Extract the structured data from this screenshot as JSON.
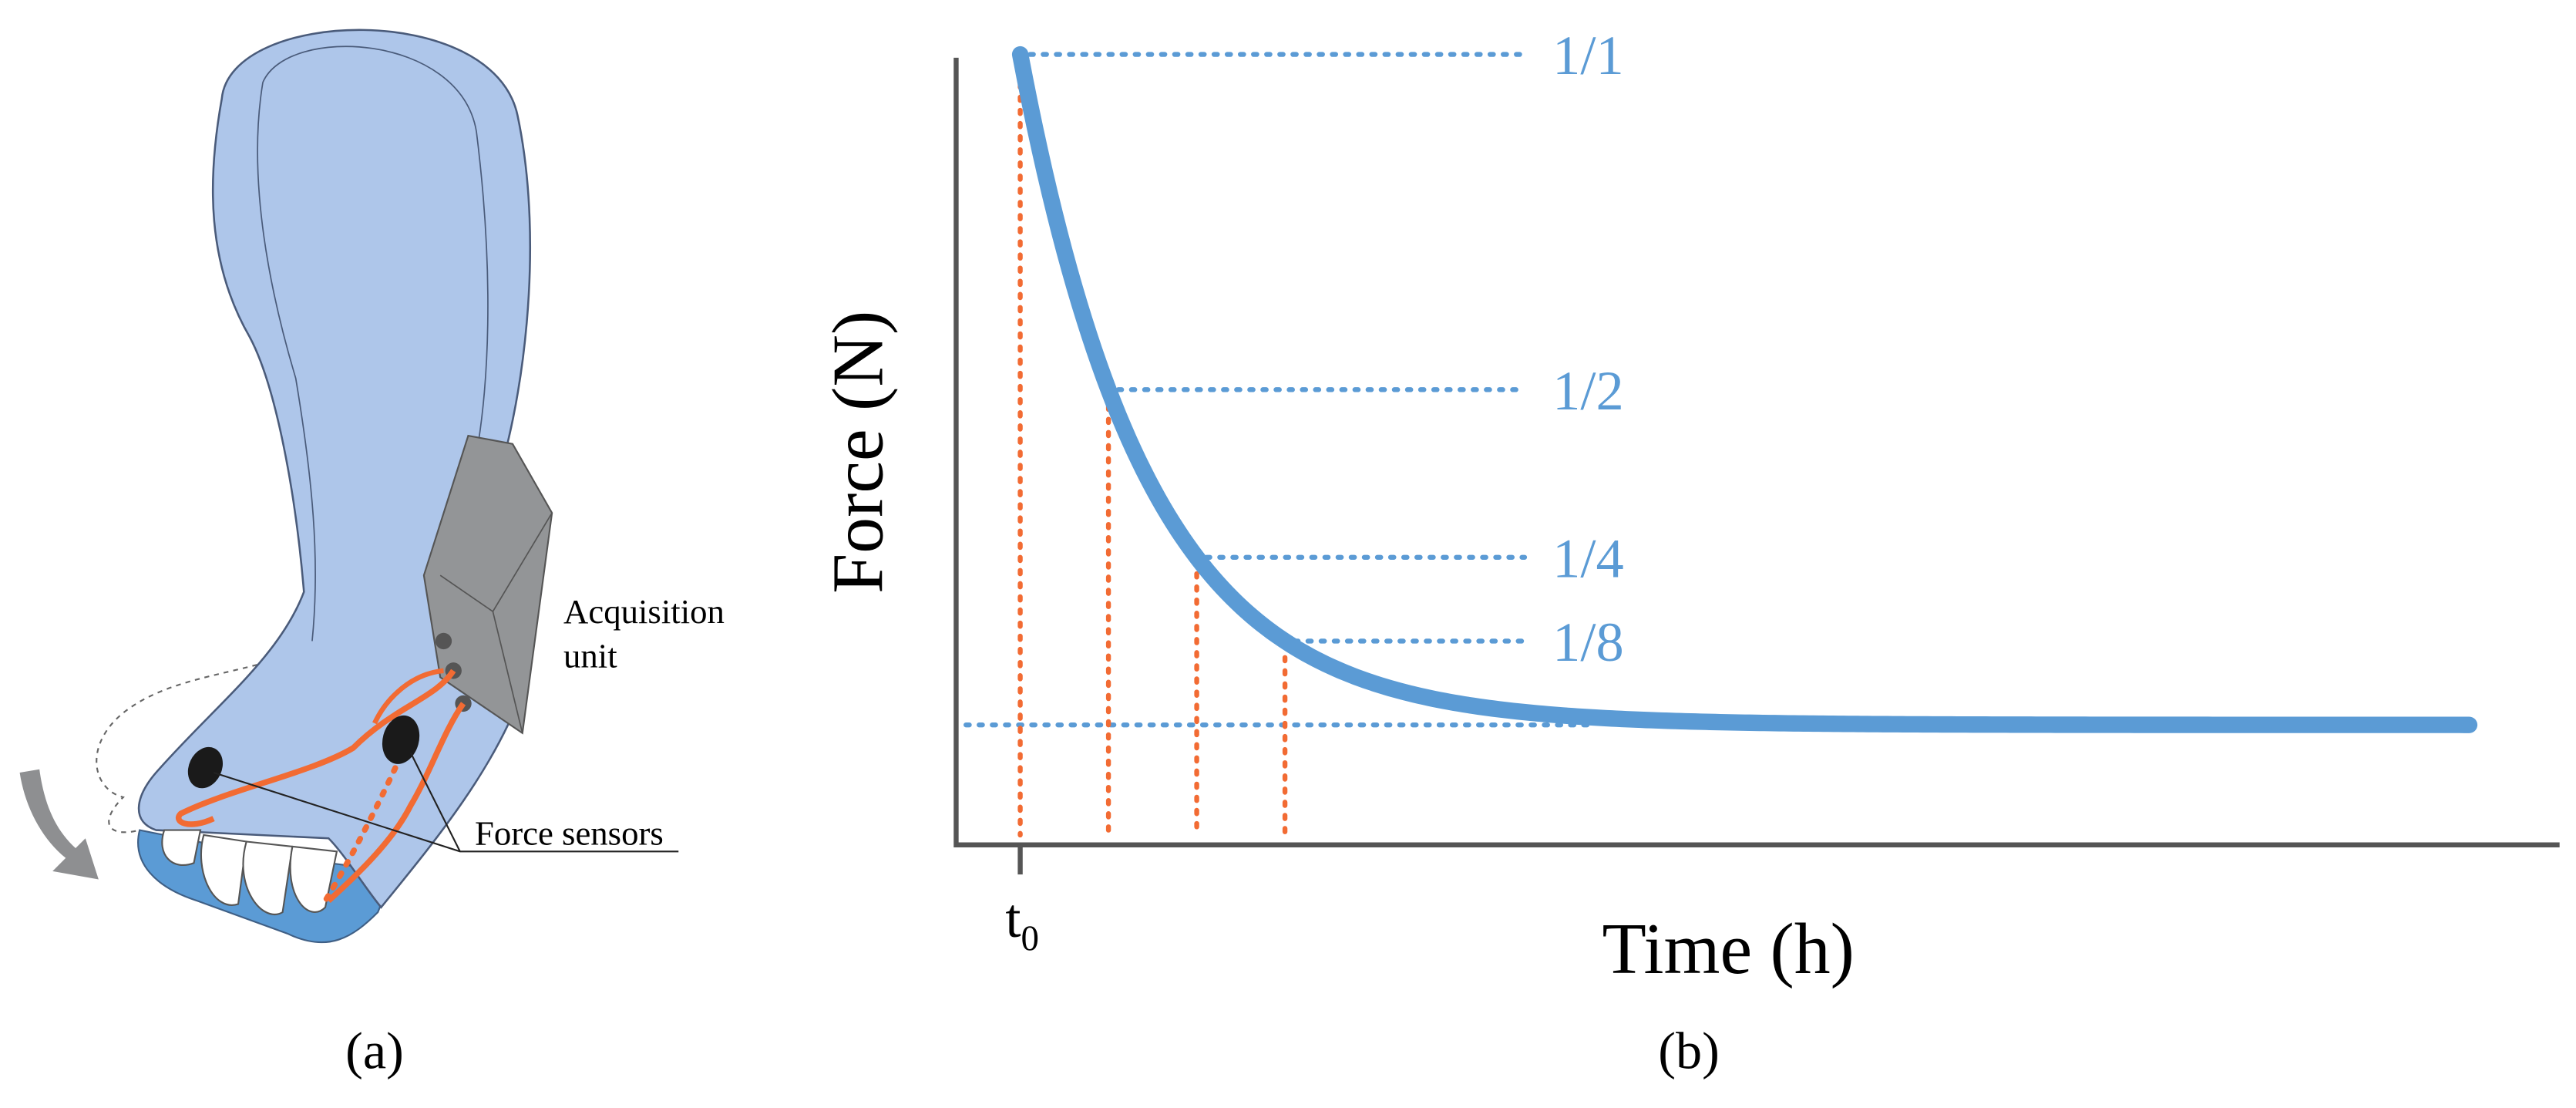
{
  "panel_a": {
    "label": "(a)",
    "acquisition_label": [
      "Acquisition",
      "unit"
    ],
    "sensors_label": "Force sensors"
  },
  "panel_b": {
    "label": "(b)",
    "y_axis_label": "Force (N)",
    "x_axis_label": "Time (h)",
    "x_tick": {
      "text": "t",
      "subscript": "0"
    },
    "levels": [
      "1/1",
      "1/2",
      "1/4",
      "1/8"
    ]
  }
}
